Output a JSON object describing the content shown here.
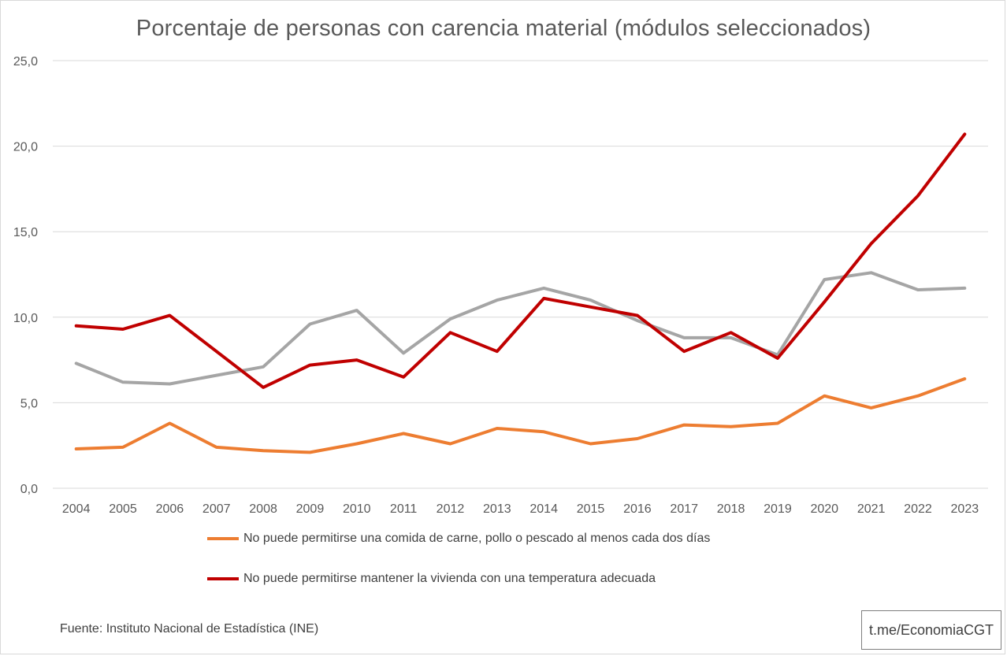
{
  "chart_data": {
    "type": "line",
    "title": "Porcentaje de personas con carencia material (módulos seleccionados)",
    "xlabel": "",
    "ylabel": "",
    "categories": [
      "2004",
      "2005",
      "2006",
      "2007",
      "2008",
      "2009",
      "2010",
      "2011",
      "2012",
      "2013",
      "2014",
      "2015",
      "2016",
      "2017",
      "2018",
      "2019",
      "2020",
      "2021",
      "2022",
      "2023"
    ],
    "ylim": [
      0,
      25
    ],
    "yticks": [
      "0,0",
      "5,0",
      "10,0",
      "15,0",
      "20,0",
      "25,0"
    ],
    "grid": true,
    "legend_position": "bottom",
    "series": [
      {
        "name": "No puede permitirse una comida de carne, pollo o pescado al menos cada dos días",
        "color": "#ed7d31",
        "values": [
          2.3,
          2.4,
          3.8,
          2.4,
          2.2,
          2.1,
          2.6,
          3.2,
          2.6,
          3.5,
          3.3,
          2.6,
          2.9,
          3.7,
          3.6,
          3.8,
          5.4,
          4.7,
          5.4,
          6.4
        ]
      },
      {
        "name": "No puede permitirse mantener la vivienda con una temperatura adecuada",
        "color": "#c00000",
        "values": [
          9.5,
          9.3,
          10.1,
          8.0,
          5.9,
          7.2,
          7.5,
          6.5,
          9.1,
          8.0,
          11.1,
          10.6,
          10.1,
          8.0,
          9.1,
          7.6,
          10.9,
          14.3,
          17.1,
          20.7
        ]
      },
      {
        "color": "#a5a5a5",
        "values": [
          7.3,
          6.2,
          6.1,
          6.6,
          7.1,
          9.6,
          10.4,
          7.9,
          9.9,
          11.0,
          11.7,
          11.0,
          9.8,
          8.8,
          8.8,
          7.8,
          12.2,
          12.6,
          11.6,
          11.7
        ]
      }
    ]
  },
  "footer": {
    "source": "Fuente: Instituto Nacional de Estadística (INE)",
    "watermark": "t.me/EconomiaCGT"
  }
}
